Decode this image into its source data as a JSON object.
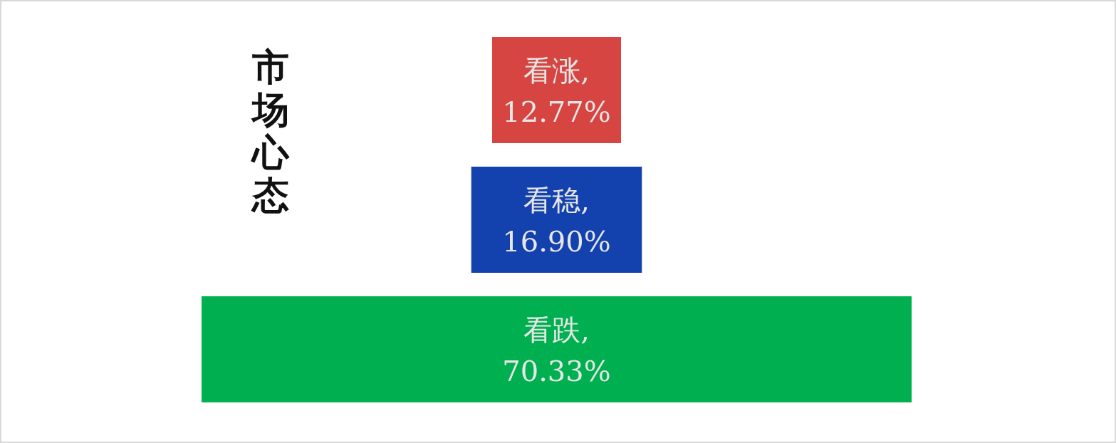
{
  "chart_data": {
    "type": "other",
    "title": "市场心态",
    "values": [
      12.77,
      16.9,
      70.33
    ],
    "value_labels": [
      "看涨, 12.77%",
      "看稳, 16.90%",
      "看跌, 70.33%"
    ],
    "colors": [
      "#d64541",
      "#1341ad",
      "#00b050"
    ]
  }
}
